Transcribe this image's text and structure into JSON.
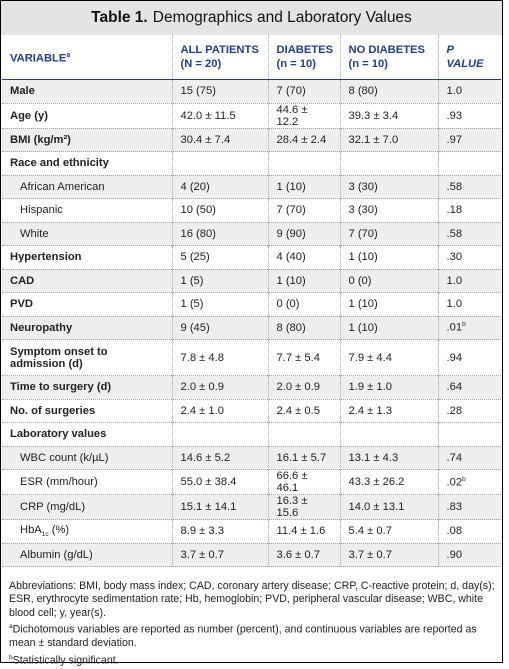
{
  "title": {
    "label": "Table 1.",
    "text": "Demographics and Laboratory Values"
  },
  "headers": {
    "variable": "VARIABLE",
    "variable_sup": "a",
    "all_line1": "ALL PATIENTS",
    "all_line2": "(N = 20)",
    "dia_line1": "DIABETES",
    "dia_line2": "(n = 10)",
    "nodia_line1": "NO DIABETES",
    "nodia_line2": "(n = 10)",
    "p": "P VALUE"
  },
  "rows": [
    {
      "label": "Male",
      "all": "15 (75)",
      "dia": "7 (70)",
      "nodia": "8 (80)",
      "p": "1.0"
    },
    {
      "label": "Age (y)",
      "all": "42.0 ± 11.5",
      "dia": "44.6 ± 12.2",
      "nodia": "39.3 ± 3.4",
      "p": ".93"
    },
    {
      "label": "BMI (kg/m²)",
      "all": "30.4 ± 7.4",
      "dia": "28.4 ± 2.4",
      "nodia": "32.1 ± 7.0",
      "p": ".97"
    },
    {
      "label": "Race and ethnicity"
    },
    {
      "label": "African American",
      "all": "4 (20)",
      "dia": "1 (10)",
      "nodia": "3 (30)",
      "p": ".58"
    },
    {
      "label": "Hispanic",
      "all": "10 (50)",
      "dia": "7 (70)",
      "nodia": "3 (30)",
      "p": ".18"
    },
    {
      "label": "White",
      "all": "16 (80)",
      "dia": "9 (90)",
      "nodia": "7 (70)",
      "p": ".58"
    },
    {
      "label": "Hypertension",
      "all": "5 (25)",
      "dia": "4 (40)",
      "nodia": "1 (10)",
      "p": ".30"
    },
    {
      "label": "CAD",
      "all": "1 (5)",
      "dia": "1 (10)",
      "nodia": "0 (0)",
      "p": "1.0"
    },
    {
      "label": "PVD",
      "all": "1 (5)",
      "dia": "0 (0)",
      "nodia": "1 (10)",
      "p": "1.0"
    },
    {
      "label": "Neuropathy",
      "all": "9 (45)",
      "dia": "8 (80)",
      "nodia": "1 (10)",
      "p": ".01",
      "p_sup": "b"
    },
    {
      "label": "Symptom onset to admission (d)",
      "all": "7.8 ± 4.8",
      "dia": "7.7 ± 5.4",
      "nodia": "7.9 ± 4.4",
      "p": ".94"
    },
    {
      "label": "Time to surgery (d)",
      "all": "2.0 ± 0.9",
      "dia": "2.0 ± 0.9",
      "nodia": "1.9 ± 1.0",
      "p": ".64"
    },
    {
      "label": "No. of surgeries",
      "all": "2.4 ± 1.0",
      "dia": "2.4 ± 0.5",
      "nodia": "2.4 ± 1.3",
      "p": ".28"
    },
    {
      "label": "Laboratory values"
    },
    {
      "label": "WBC count (k/µL)",
      "all": "14.6 ± 5.2",
      "dia": "16.1 ± 5.7",
      "nodia": "13.1 ± 4.3",
      "p": ".74"
    },
    {
      "label": "ESR (mm/hour)",
      "all": "55.0 ± 38.4",
      "dia": "66.6 ± 46.1",
      "nodia": "43.3 ± 26.2",
      "p": ".02",
      "p_sup": "b"
    },
    {
      "label": "CRP (mg/dL)",
      "all": "15.1 ± 14.1",
      "dia": "16.3 ± 15.6",
      "nodia": "14.0 ± 13.1",
      "p": ".83"
    },
    {
      "label": "HbA",
      "label_sub": "1c",
      "label_after": " (%)",
      "all": "8.9 ± 3.3",
      "dia": "11.4 ± 1.6",
      "nodia": "5.4 ± 0.7",
      "p": ".08"
    },
    {
      "label": "Albumin (g/dL)",
      "all": "3.7 ± 0.7",
      "dia": "3.6 ± 0.7",
      "nodia": "3.7 ± 0.7",
      "p": ".90"
    }
  ],
  "footnotes": {
    "abbreviations": "Abbreviations: BMI, body mass index; CAD, coronary artery disease; CRP, C-reactive protein; d, day(s); ESR, erythrocyte sedimentation rate; Hb, hemoglobin; PVD, peripheral vascular disease; WBC, white blood cell; y, year(s).",
    "a_mark": "a",
    "a_text": "Dichotomous variables are reported as number (percent), and continuous variables are reported as mean ± standard deviation.",
    "b_mark": "b",
    "b_text": "Statistically significant."
  }
}
